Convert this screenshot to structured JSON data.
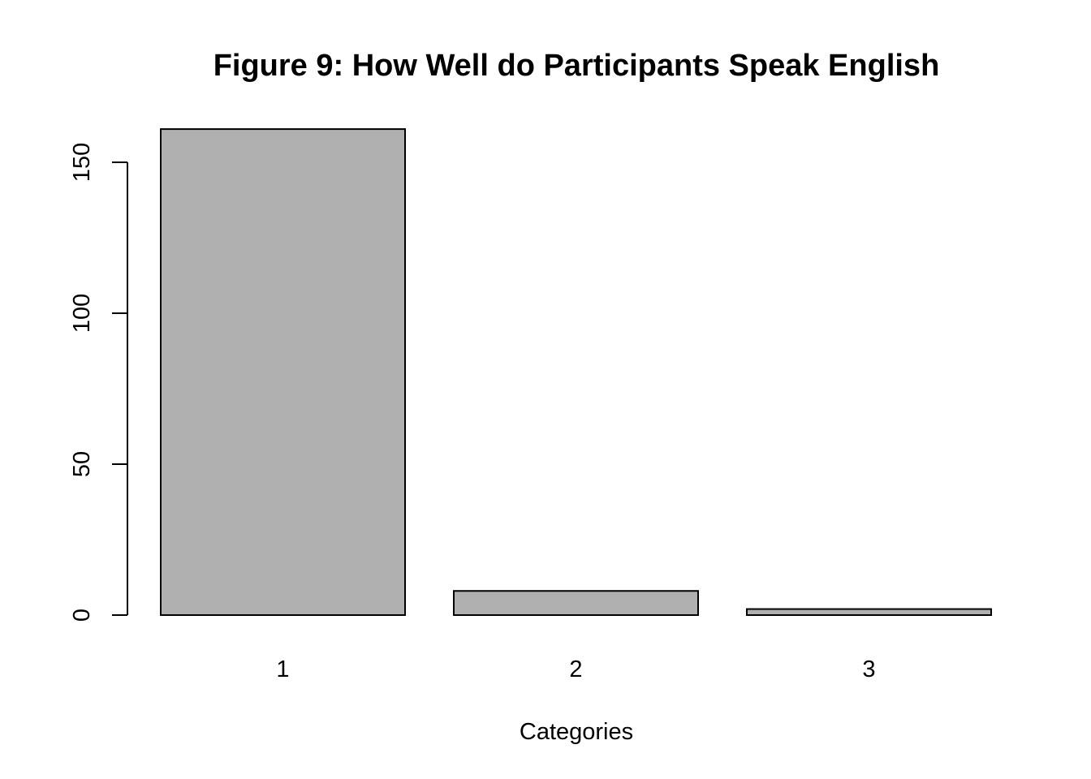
{
  "chart_data": {
    "type": "bar",
    "title": "Figure 9: How Well do Participants Speak English",
    "xlabel": "Categories",
    "ylabel": "",
    "categories": [
      "1",
      "2",
      "3"
    ],
    "values": [
      161,
      8,
      2
    ],
    "ylim": [
      0,
      161
    ],
    "yticks": [
      0,
      50,
      100,
      150
    ],
    "bar_color": "#b0b0b0",
    "grid": false,
    "legend": "none"
  }
}
